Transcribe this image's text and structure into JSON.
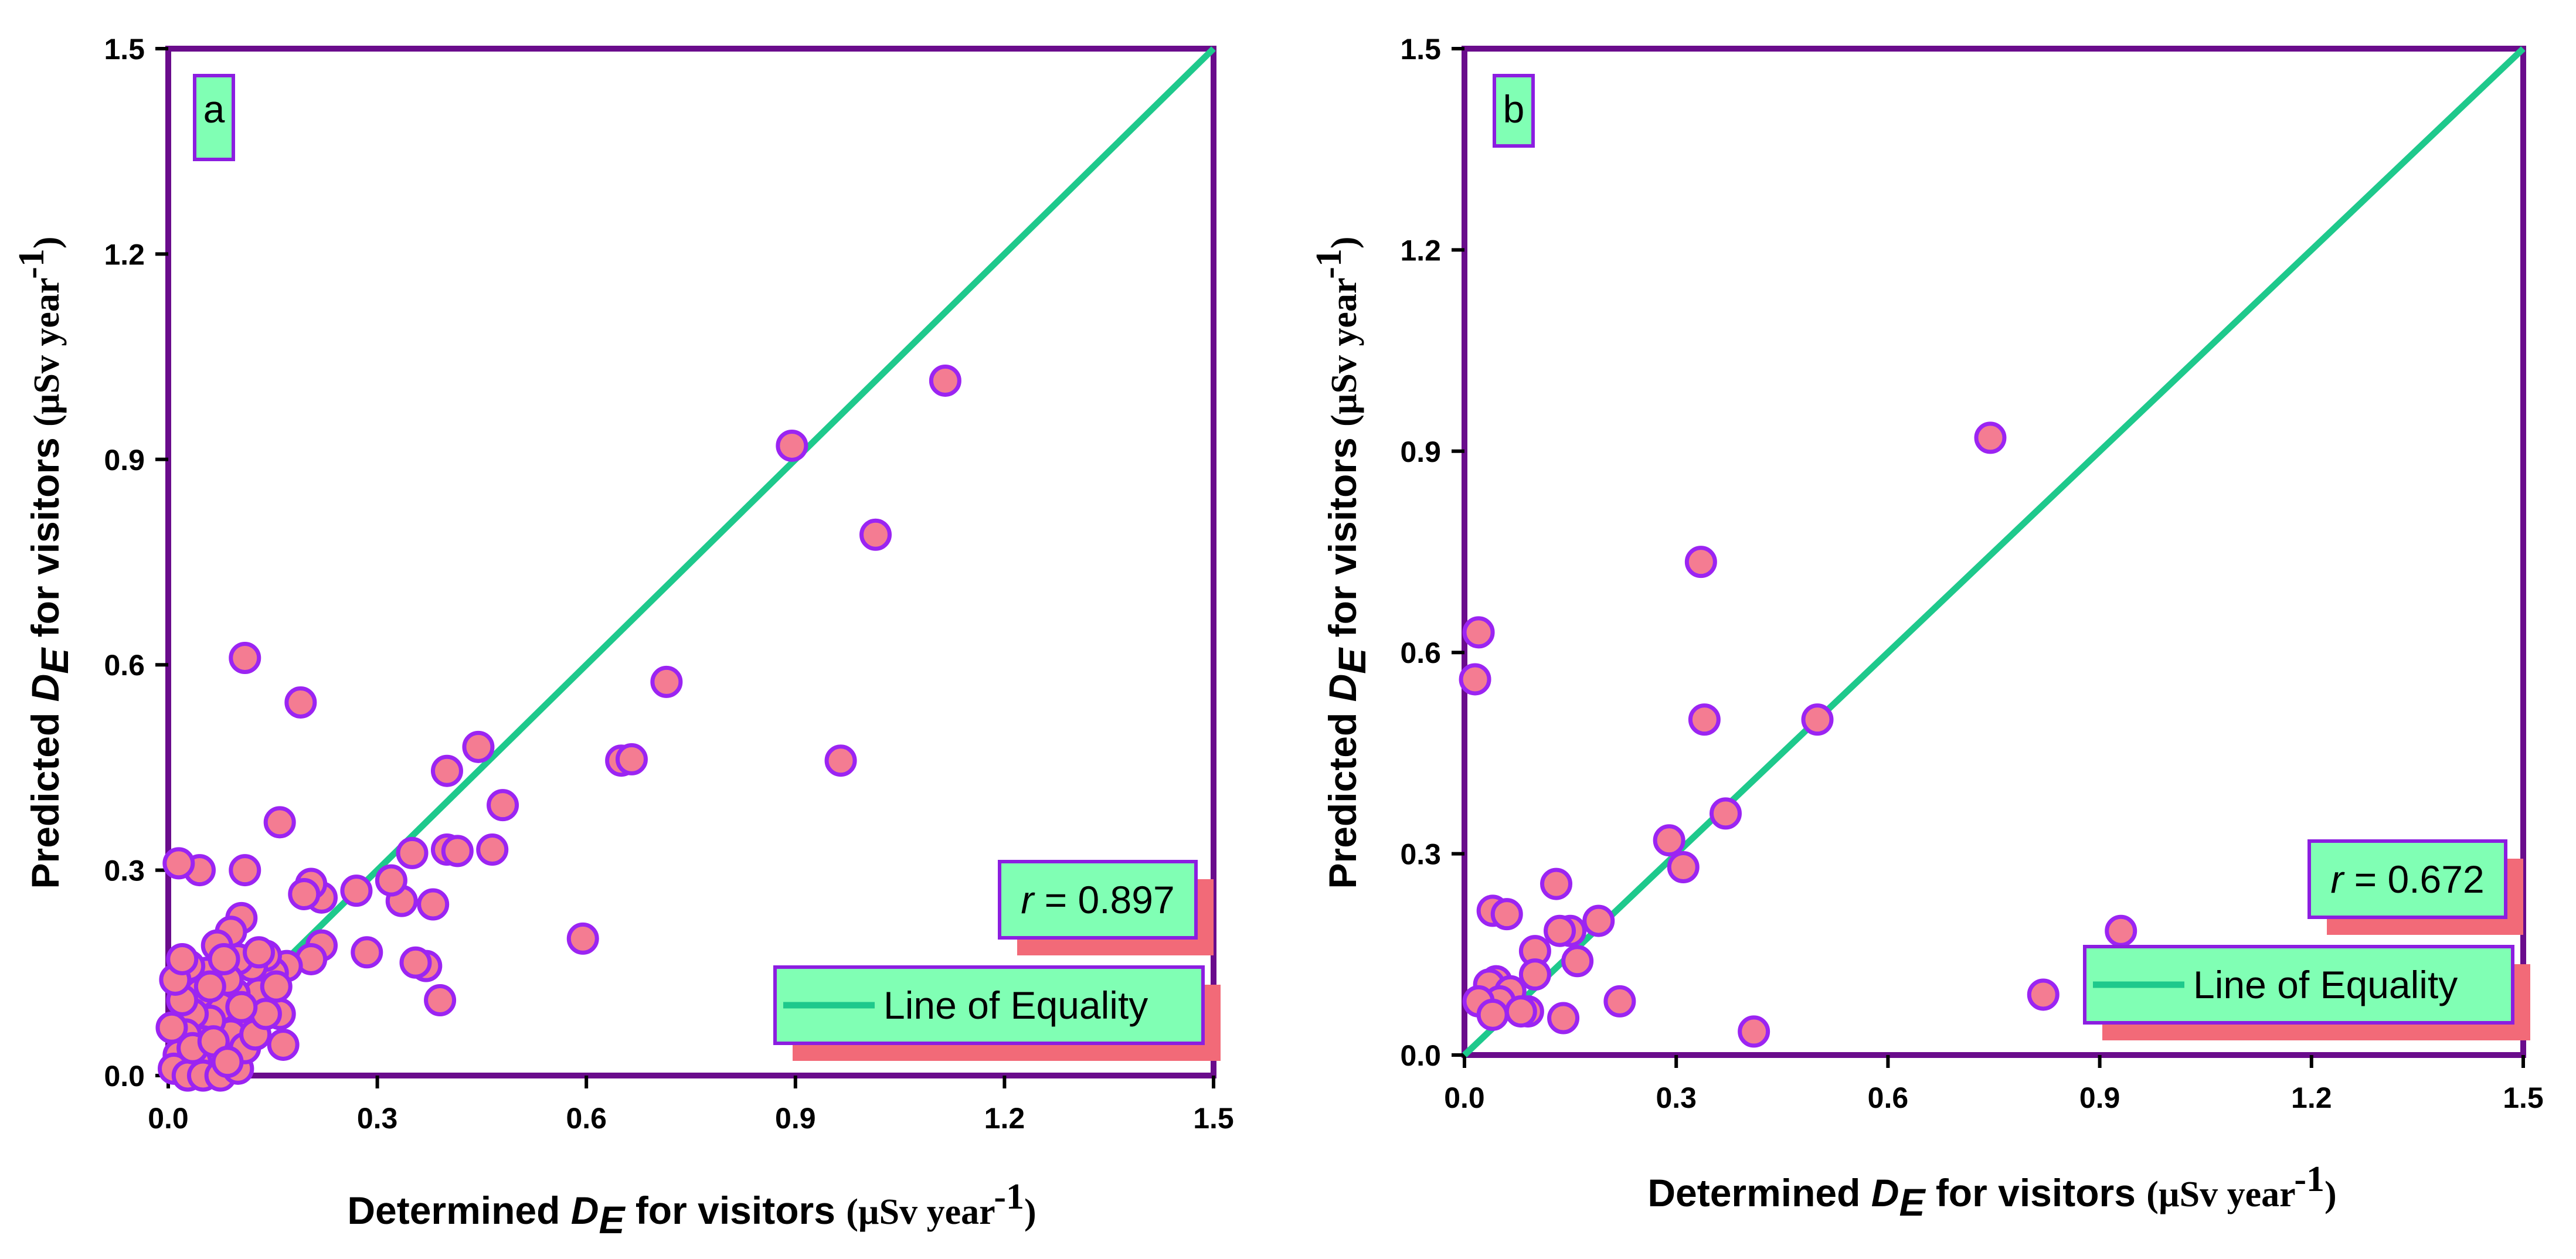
{
  "style": {
    "frame_color": "#6a0c8c",
    "line_color": "#1ec98c",
    "point_fill": "#f47c92",
    "point_stroke": "#9b24f2",
    "box_fill": "#80ffb4",
    "box_border": "#8c1ee0",
    "box_shadow": "#f26a78"
  },
  "chart_data": [
    {
      "type": "scatter",
      "panel_label": "a",
      "xlim": [
        0,
        1.5
      ],
      "ylim": [
        0,
        1.5
      ],
      "x_ticks": [
        "0.0",
        "0.3",
        "0.6",
        "0.9",
        "1.2",
        "1.5"
      ],
      "y_ticks": [
        "0.0",
        "0.3",
        "0.6",
        "0.9",
        "1.2",
        "1.5"
      ],
      "xlabel": {
        "pre": "Determined ",
        "sym": "D",
        "sub": "E",
        "post": " for visitors ",
        "unit": "(µSv year",
        "exp": "-1",
        "close": ")"
      },
      "ylabel": {
        "pre": "Predicted ",
        "sym": "D",
        "sub": "E",
        "post": " for visitors ",
        "unit": "(µSv year",
        "exp": "-1",
        "close": ")"
      },
      "r_text": {
        "sym": "r",
        "rest": " = 0.897"
      },
      "legend": "Line of Equality",
      "line_of_equality": [
        [
          0,
          0
        ],
        [
          1.5,
          1.5
        ]
      ],
      "points": [
        [
          1.115,
          1.015
        ],
        [
          0.895,
          0.92
        ],
        [
          1.015,
          0.79
        ],
        [
          0.965,
          0.46
        ],
        [
          0.715,
          0.575
        ],
        [
          0.65,
          0.46
        ],
        [
          0.665,
          0.462
        ],
        [
          0.595,
          0.2
        ],
        [
          0.48,
          0.395
        ],
        [
          0.445,
          0.48
        ],
        [
          0.465,
          0.33
        ],
        [
          0.4,
          0.445
        ],
        [
          0.4,
          0.33
        ],
        [
          0.415,
          0.328
        ],
        [
          0.39,
          0.11
        ],
        [
          0.38,
          0.25
        ],
        [
          0.37,
          0.16
        ],
        [
          0.355,
          0.165
        ],
        [
          0.35,
          0.325
        ],
        [
          0.335,
          0.255
        ],
        [
          0.32,
          0.285
        ],
        [
          0.27,
          0.27
        ],
        [
          0.285,
          0.18
        ],
        [
          0.22,
          0.26
        ],
        [
          0.205,
          0.28
        ],
        [
          0.195,
          0.265
        ],
        [
          0.22,
          0.19
        ],
        [
          0.205,
          0.17
        ],
        [
          0.19,
          0.545
        ],
        [
          0.11,
          0.61
        ],
        [
          0.16,
          0.37
        ],
        [
          0.11,
          0.3
        ],
        [
          0.045,
          0.3
        ],
        [
          0.015,
          0.31
        ],
        [
          0.105,
          0.23
        ],
        [
          0.09,
          0.21
        ],
        [
          0.07,
          0.19
        ],
        [
          0.17,
          0.16
        ],
        [
          0.16,
          0.09
        ],
        [
          0.165,
          0.045
        ],
        [
          0.15,
          0.15
        ],
        [
          0.14,
          0.175
        ],
        [
          0.13,
          0.12
        ],
        [
          0.12,
          0.16
        ],
        [
          0.115,
          0.08
        ],
        [
          0.1,
          0.17
        ],
        [
          0.095,
          0.12
        ],
        [
          0.09,
          0.06
        ],
        [
          0.085,
          0.14
        ],
        [
          0.075,
          0.1
        ],
        [
          0.07,
          0.03
        ],
        [
          0.06,
          0.08
        ],
        [
          0.055,
          0.15
        ],
        [
          0.05,
          0.05
        ],
        [
          0.045,
          0.12
        ],
        [
          0.04,
          0.02
        ],
        [
          0.035,
          0.09
        ],
        [
          0.03,
          0.16
        ],
        [
          0.025,
          0.06
        ],
        [
          0.02,
          0.11
        ],
        [
          0.015,
          0.03
        ],
        [
          0.01,
          0.14
        ],
        [
          0.005,
          0.07
        ],
        [
          0.008,
          0.01
        ],
        [
          0.028,
          0.0
        ],
        [
          0.05,
          0.0
        ],
        [
          0.075,
          0.0
        ],
        [
          0.1,
          0.01
        ],
        [
          0.11,
          0.04
        ],
        [
          0.125,
          0.06
        ],
        [
          0.14,
          0.09
        ],
        [
          0.155,
          0.13
        ],
        [
          0.06,
          0.13
        ],
        [
          0.08,
          0.17
        ],
        [
          0.035,
          0.04
        ],
        [
          0.065,
          0.05
        ],
        [
          0.085,
          0.02
        ],
        [
          0.105,
          0.1
        ],
        [
          0.13,
          0.18
        ],
        [
          0.02,
          0.17
        ]
      ]
    },
    {
      "type": "scatter",
      "panel_label": "b",
      "xlim": [
        0,
        1.5
      ],
      "ylim": [
        0,
        1.5
      ],
      "x_ticks": [
        "0.0",
        "0.3",
        "0.6",
        "0.9",
        "1.2",
        "1.5"
      ],
      "y_ticks": [
        "0.0",
        "0.3",
        "0.6",
        "0.9",
        "1.2",
        "1.5"
      ],
      "xlabel": {
        "pre": "Determined ",
        "sym": "D",
        "sub": "E",
        "post": " for visitors ",
        "unit": "(µSv year",
        "exp": "-1",
        "close": ")"
      },
      "ylabel": {
        "pre": "Predicted ",
        "sym": "D",
        "sub": "E",
        "post": " for visitors ",
        "unit": "(µSv year",
        "exp": "-1",
        "close": ")"
      },
      "r_text": {
        "sym": "r",
        "rest": " = 0.672"
      },
      "legend": "Line of Equality",
      "line_of_equality": [
        [
          0,
          0
        ],
        [
          1.5,
          1.5
        ]
      ],
      "points": [
        [
          0.745,
          0.92
        ],
        [
          0.335,
          0.735
        ],
        [
          0.02,
          0.63
        ],
        [
          0.015,
          0.56
        ],
        [
          0.34,
          0.5
        ],
        [
          0.5,
          0.5
        ],
        [
          0.37,
          0.36
        ],
        [
          0.29,
          0.32
        ],
        [
          0.31,
          0.28
        ],
        [
          0.13,
          0.255
        ],
        [
          0.19,
          0.2
        ],
        [
          0.04,
          0.215
        ],
        [
          0.06,
          0.21
        ],
        [
          0.15,
          0.185
        ],
        [
          0.135,
          0.185
        ],
        [
          0.16,
          0.14
        ],
        [
          0.1,
          0.155
        ],
        [
          0.1,
          0.12
        ],
        [
          0.045,
          0.11
        ],
        [
          0.035,
          0.105
        ],
        [
          0.065,
          0.095
        ],
        [
          0.05,
          0.08
        ],
        [
          0.02,
          0.08
        ],
        [
          0.04,
          0.06
        ],
        [
          0.09,
          0.065
        ],
        [
          0.08,
          0.065
        ],
        [
          0.14,
          0.055
        ],
        [
          0.22,
          0.08
        ],
        [
          0.41,
          0.035
        ],
        [
          0.82,
          0.09
        ],
        [
          0.93,
          0.185
        ]
      ]
    }
  ]
}
